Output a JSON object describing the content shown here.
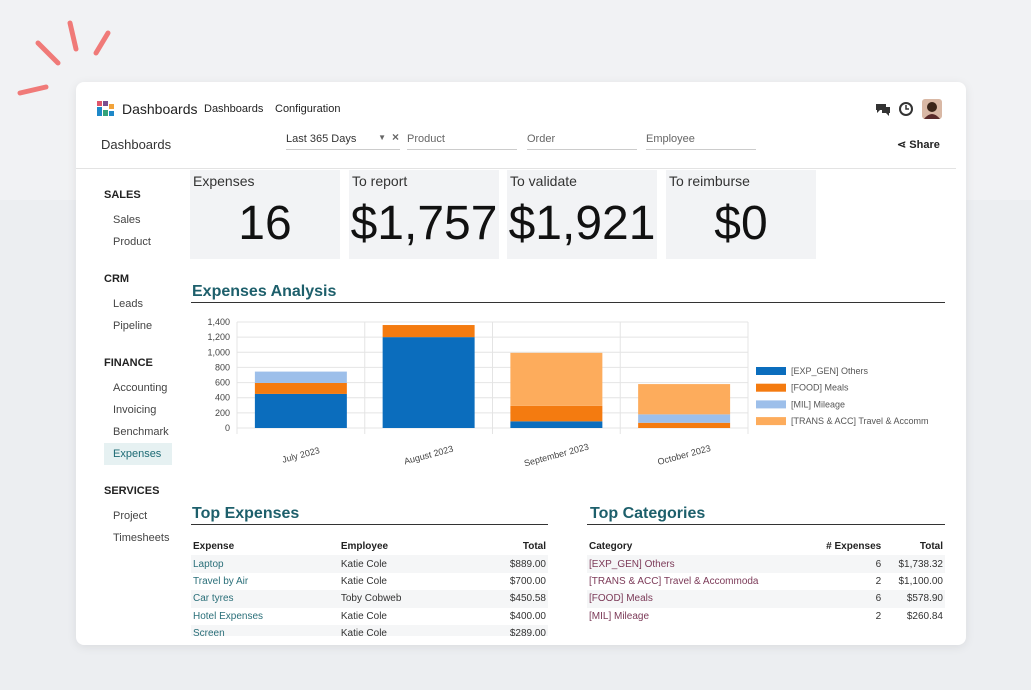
{
  "nav": {
    "app": "Dashboards",
    "menu": [
      "Dashboards",
      "Configuration"
    ]
  },
  "breadcrumb": "Dashboards",
  "filters": {
    "period": "Last 365 Days",
    "fields": [
      "Product",
      "Order",
      "Employee"
    ]
  },
  "share": "Share",
  "sidebar": [
    {
      "title": "SALES",
      "items": [
        "Sales",
        "Product"
      ]
    },
    {
      "title": "CRM",
      "items": [
        "Leads",
        "Pipeline"
      ]
    },
    {
      "title": "FINANCE",
      "items": [
        "Accounting",
        "Invoicing",
        "Benchmark",
        "Expenses"
      ]
    },
    {
      "title": "SERVICES",
      "items": [
        "Project",
        "Timesheets"
      ]
    }
  ],
  "kpis": [
    {
      "label": "Expenses",
      "value": "16"
    },
    {
      "label": "To report",
      "value": "$1,757"
    },
    {
      "label": "To validate",
      "value": "$1,921"
    },
    {
      "label": "To reimburse",
      "value": "$0"
    }
  ],
  "chart_data": {
    "type": "bar",
    "stacked": true,
    "title": "Expenses Analysis",
    "categories": [
      "July 2023",
      "August 2023",
      "September 2023",
      "October 2023"
    ],
    "series": [
      {
        "name": "[EXP_GEN] Others",
        "color": "#0b6dbd",
        "values": [
          450,
          1200,
          88,
          0
        ]
      },
      {
        "name": "[FOOD] Meals",
        "color": "#f47b10",
        "values": [
          145,
          160,
          205,
          69
        ]
      },
      {
        "name": "[MIL] Mileage",
        "color": "#9dbfea",
        "values": [
          150,
          0,
          0,
          111
        ]
      },
      {
        "name": "[TRANS & ACC] Travel & Accomm",
        "color": "#fdac5c",
        "values": [
          0,
          0,
          700,
          400
        ]
      }
    ],
    "ylim": [
      0,
      1400
    ],
    "yticks": [
      0,
      200,
      400,
      600,
      800,
      {
        "value": 1000,
        "label": "1,000"
      },
      {
        "value": 1200,
        "label": "1,200"
      },
      {
        "value": 1400,
        "label": "1,400"
      }
    ],
    "grid": true,
    "legend": "right"
  },
  "top_expenses": {
    "title": "Top Expenses",
    "columns": [
      "Expense",
      "Employee",
      "Total"
    ],
    "rows": [
      [
        "Laptop",
        "Katie Cole",
        "$889.00"
      ],
      [
        "Travel by Air",
        "Katie Cole",
        "$700.00"
      ],
      [
        "Car tyres",
        "Toby Cobweb",
        "$450.58"
      ],
      [
        "Hotel Expenses",
        "Katie Cole",
        "$400.00"
      ],
      [
        "Screen",
        "Katie Cole",
        "$289.00"
      ]
    ]
  },
  "top_categories": {
    "title": "Top Categories",
    "columns": [
      "Category",
      "# Expenses",
      "Total"
    ],
    "rows": [
      [
        "[EXP_GEN] Others",
        6,
        "$1,738.32"
      ],
      [
        "[TRANS & ACC] Travel & Accommoda",
        2,
        "$1,100.00"
      ],
      [
        "[FOOD] Meals",
        6,
        "$578.90"
      ],
      [
        "[MIL] Mileage",
        2,
        "$260.84"
      ]
    ]
  }
}
